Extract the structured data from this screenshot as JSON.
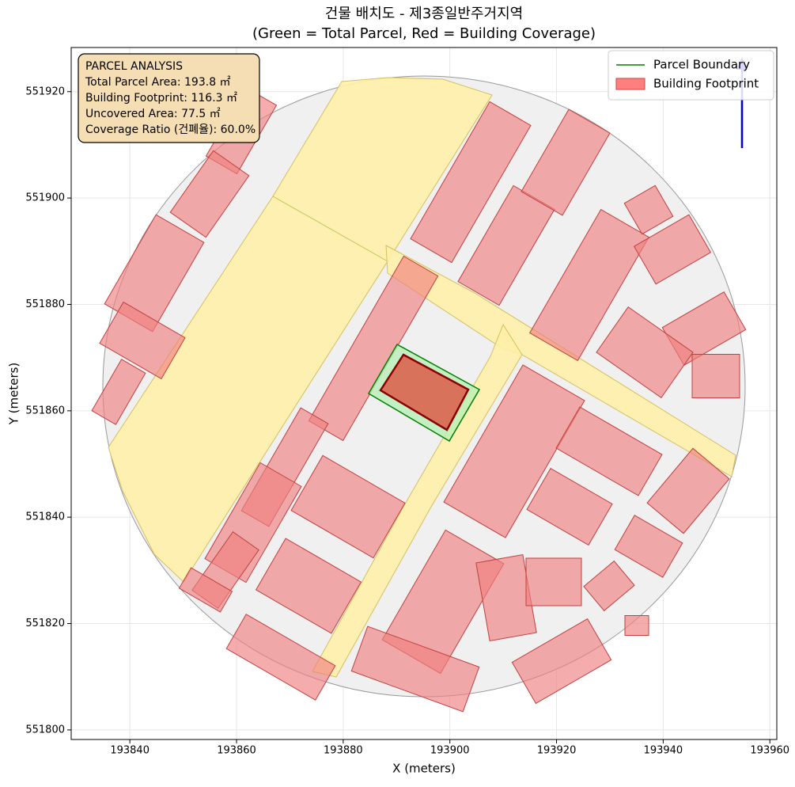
{
  "chart_data": {
    "type": "map",
    "title": "건물 배치도 - 제3종일반주거지역",
    "subtitle": "(Green = Total Parcel, Red = Building Coverage)",
    "x_label": "X (meters)",
    "y_label": "Y (meters)",
    "xlim": [
      193829,
      193961.3
    ],
    "ylim": [
      551798.2,
      551928.3
    ],
    "xticks": [
      193840,
      193860,
      193880,
      193900,
      193920,
      193940,
      193960
    ],
    "yticks": [
      551800,
      551820,
      551840,
      551860,
      551880,
      551900,
      551920
    ],
    "grid": true,
    "legend_loc": "upper right",
    "series": [
      {
        "name": "Parcel Boundary",
        "color": "green"
      },
      {
        "name": "Building Footprint",
        "color": "#ff7f7f"
      }
    ],
    "annotation": [
      "PARCEL ANALYSIS",
      "Total Parcel Area: 193.8 ㎡",
      "Building Footprint: 116.3 ㎡",
      "Uncovered Area: 77.5 ㎡",
      "Coverage Ratio (건폐율): 60.0%"
    ]
  }
}
